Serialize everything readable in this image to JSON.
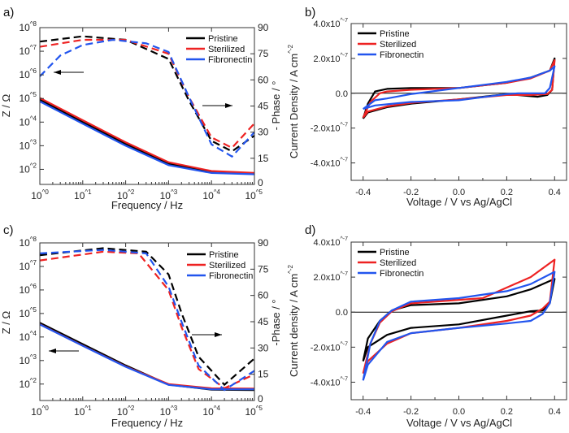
{
  "chart_data": [
    {
      "panel": "a)",
      "type": "line",
      "xlabel": "Frequency / Hz",
      "ylabel": "Z / Ω",
      "y2label": "- Phase / °",
      "xscale": "log",
      "yscale": "log",
      "xlim": [
        1,
        100000
      ],
      "ylim": [
        23,
        100000000
      ],
      "y2lim": [
        0,
        90
      ],
      "xticks": [
        1,
        10,
        100,
        1000,
        10000,
        100000
      ],
      "xticklabels": [
        "10^0",
        "10^1",
        "10^2",
        "10^3",
        "10^4",
        "10^5"
      ],
      "yticks": [
        100,
        1000,
        10000,
        100000,
        1000000,
        10000000,
        100000000
      ],
      "yticklabels": [
        "10^2",
        "10^3",
        "10^4",
        "10^5",
        "10^6",
        "10^7",
        "10^8"
      ],
      "y2ticks": [
        0,
        15,
        30,
        45,
        60,
        75,
        90
      ],
      "y2ticklabels": [
        "0",
        "15",
        "30",
        "45",
        "60",
        "75",
        "90"
      ],
      "legend": "top-right",
      "series": [
        {
          "name": "Pristine",
          "color": "#000000",
          "z": [
            [
              1,
              90000
            ],
            [
              10,
              10000
            ],
            [
              100,
              1200
            ],
            [
              1000,
              170
            ],
            [
              10000,
              80
            ],
            [
              100000,
              68
            ]
          ],
          "phase": [
            [
              1,
              82
            ],
            [
              10,
              85
            ],
            [
              100,
              83
            ],
            [
              1000,
              72
            ],
            [
              3000,
              48
            ],
            [
              10000,
              25
            ],
            [
              30000,
              19
            ],
            [
              100000,
              28
            ]
          ]
        },
        {
          "name": "Sterilized",
          "color": "#ee2222",
          "z": [
            [
              1,
              105000
            ],
            [
              10,
              12000
            ],
            [
              100,
              1400
            ],
            [
              1000,
              200
            ],
            [
              10000,
              85
            ],
            [
              100000,
              70
            ]
          ],
          "phase": [
            [
              1,
              79
            ],
            [
              10,
              83
            ],
            [
              100,
              83
            ],
            [
              1000,
              75
            ],
            [
              3000,
              50
            ],
            [
              10000,
              27
            ],
            [
              30000,
              21
            ],
            [
              100000,
              35
            ]
          ]
        },
        {
          "name": "Fibronectin",
          "color": "#2255ee",
          "z": [
            [
              1,
              75000
            ],
            [
              10,
              8500
            ],
            [
              100,
              1000
            ],
            [
              1000,
              150
            ],
            [
              10000,
              70
            ],
            [
              100000,
              62
            ]
          ],
          "phase": [
            [
              1,
              62
            ],
            [
              3,
              74
            ],
            [
              10,
              80
            ],
            [
              50,
              83
            ],
            [
              300,
              81
            ],
            [
              1000,
              76
            ],
            [
              3000,
              50
            ],
            [
              10000,
              23
            ],
            [
              30000,
              16
            ],
            [
              100000,
              30
            ]
          ]
        }
      ]
    },
    {
      "panel": "b)",
      "type": "line",
      "xlabel": "Voltage / V vs Ag/AgCl",
      "ylabel": "Current Density / A cm^-2",
      "xlim": [
        -0.45,
        0.45
      ],
      "ylim": [
        -5e-07,
        4e-07
      ],
      "xticks": [
        -0.4,
        -0.2,
        0,
        0.2,
        0.4
      ],
      "xticklabels": [
        "-0.4",
        "-0.2",
        "0.0",
        "0.2",
        "0.4"
      ],
      "yticks": [
        -4e-07,
        -2e-07,
        0,
        2e-07,
        4e-07
      ],
      "yticklabels": [
        "-4.0x10^-7",
        "-2.0x10^-7",
        "0.0",
        "2.0x10^-7",
        "4.0x10^-7"
      ],
      "legend": "top-left",
      "series": [
        {
          "name": "Pristine",
          "color": "#000000",
          "points": [
            [
              -0.4,
              -1.45e-07
            ],
            [
              -0.38,
              -6e-08
            ],
            [
              -0.35,
              1e-08
            ],
            [
              -0.3,
              2.5e-08
            ],
            [
              -0.2,
              3e-08
            ],
            [
              0,
              3e-08
            ],
            [
              0.2,
              6e-08
            ],
            [
              0.3,
              9e-08
            ],
            [
              0.38,
              1.3e-07
            ],
            [
              0.4,
              2e-07
            ],
            [
              0.39,
              2e-08
            ],
            [
              0.37,
              -1e-08
            ],
            [
              0.33,
              -2e-08
            ],
            [
              0.2,
              -5e-09
            ],
            [
              0,
              -3.5e-08
            ],
            [
              -0.2,
              -6e-08
            ],
            [
              -0.3,
              -8e-08
            ],
            [
              -0.38,
              -1.1e-07
            ],
            [
              -0.4,
              -1.45e-07
            ]
          ]
        },
        {
          "name": "Sterilized",
          "color": "#ee2222",
          "points": [
            [
              -0.4,
              -1.4e-07
            ],
            [
              -0.37,
              -5e-08
            ],
            [
              -0.33,
              0.0
            ],
            [
              -0.3,
              1e-08
            ],
            [
              -0.2,
              2e-08
            ],
            [
              0,
              3e-08
            ],
            [
              0.2,
              6e-08
            ],
            [
              0.3,
              8.5e-08
            ],
            [
              0.38,
              1.3e-07
            ],
            [
              0.4,
              1.9e-07
            ],
            [
              0.39,
              2e-08
            ],
            [
              0.37,
              -5e-09
            ],
            [
              0.3,
              -1e-08
            ],
            [
              0.2,
              -1e-08
            ],
            [
              0,
              -3.5e-08
            ],
            [
              -0.2,
              -5.5e-08
            ],
            [
              -0.3,
              -7.5e-08
            ],
            [
              -0.38,
              -1.05e-07
            ],
            [
              -0.4,
              -1.4e-07
            ]
          ]
        },
        {
          "name": "Fibronectin",
          "color": "#2255ee",
          "points": [
            [
              -0.4,
              -9e-08
            ],
            [
              -0.35,
              -4e-08
            ],
            [
              -0.3,
              -3e-08
            ],
            [
              -0.2,
              -5e-09
            ],
            [
              0,
              3e-08
            ],
            [
              0.2,
              6.5e-08
            ],
            [
              0.3,
              9e-08
            ],
            [
              0.38,
              1.3e-07
            ],
            [
              0.4,
              1.55e-07
            ],
            [
              0.38,
              3e-08
            ],
            [
              0.36,
              0.0
            ],
            [
              0.25,
              0.0
            ],
            [
              0.2,
              -5e-09
            ],
            [
              0,
              -4e-08
            ],
            [
              -0.2,
              -5e-08
            ],
            [
              -0.35,
              -7e-08
            ],
            [
              -0.4,
              -9e-08
            ]
          ]
        }
      ]
    },
    {
      "panel": "c)",
      "type": "line",
      "xlabel": "Frequency / Hz",
      "ylabel": "Z / Ω",
      "y2label": "-Phase / °",
      "xscale": "log",
      "yscale": "log",
      "xlim": [
        1,
        100000
      ],
      "ylim": [
        20,
        100000000
      ],
      "y2lim": [
        0,
        90
      ],
      "xticks": [
        1,
        10,
        100,
        1000,
        10000,
        100000
      ],
      "xticklabels": [
        "10^0",
        "10^1",
        "10^2",
        "10^3",
        "10^4",
        "10^5"
      ],
      "yticks": [
        100,
        1000,
        10000,
        100000,
        1000000,
        10000000,
        100000000
      ],
      "yticklabels": [
        "10^2",
        "10^3",
        "10^4",
        "10^5",
        "10^6",
        "10^7",
        "10^8"
      ],
      "y2ticks": [
        0,
        15,
        30,
        45,
        60,
        75,
        90
      ],
      "y2ticklabels": [
        "0",
        "15",
        "30",
        "45",
        "60",
        "75",
        "90"
      ],
      "legend": "top-right",
      "series": [
        {
          "name": "Pristine",
          "color": "#000000",
          "z": [
            [
              1,
              40000
            ],
            [
              10,
              5000
            ],
            [
              100,
              620
            ],
            [
              1000,
              95
            ],
            [
              10000,
              58
            ],
            [
              100000,
              56
            ]
          ],
          "phase": [
            [
              1,
              83
            ],
            [
              30,
              87
            ],
            [
              300,
              85
            ],
            [
              1000,
              72
            ],
            [
              2000,
              50
            ],
            [
              5000,
              25
            ],
            [
              20000,
              9
            ],
            [
              100000,
              24
            ]
          ]
        },
        {
          "name": "Sterilized",
          "color": "#ee2222",
          "z": [
            [
              1,
              35000
            ],
            [
              10,
              4300
            ],
            [
              100,
              560
            ],
            [
              1000,
              100
            ],
            [
              10000,
              66
            ],
            [
              100000,
              64
            ]
          ],
          "phase": [
            [
              1,
              80
            ],
            [
              30,
              85
            ],
            [
              200,
              84
            ],
            [
              1000,
              63
            ],
            [
              2000,
              42
            ],
            [
              5000,
              18
            ],
            [
              20000,
              7
            ],
            [
              100000,
              15
            ]
          ]
        },
        {
          "name": "Fibronectin",
          "color": "#2255ee",
          "z": [
            [
              1,
              34000
            ],
            [
              10,
              4200
            ],
            [
              100,
              540
            ],
            [
              1000,
              92
            ],
            [
              10000,
              60
            ],
            [
              100000,
              60
            ]
          ],
          "phase": [
            [
              1,
              84
            ],
            [
              30,
              86
            ],
            [
              300,
              84
            ],
            [
              1000,
              65
            ],
            [
              2000,
              45
            ],
            [
              5000,
              20
            ],
            [
              20000,
              6
            ],
            [
              100000,
              17
            ]
          ]
        }
      ]
    },
    {
      "panel": "d)",
      "type": "line",
      "xlabel": "Voltage / V vs Ag/AgCl",
      "ylabel": "Current density / A cm^-2",
      "xlim": [
        -0.45,
        0.45
      ],
      "ylim": [
        -5e-07,
        4e-07
      ],
      "xticks": [
        -0.4,
        -0.2,
        0,
        0.2,
        0.4
      ],
      "xticklabels": [
        "-0.4",
        "-0.2",
        "0.0",
        "0.2",
        "0.4"
      ],
      "yticks": [
        -4e-07,
        -2e-07,
        0,
        2e-07,
        4e-07
      ],
      "yticklabels": [
        "-4.0x10^-7",
        "-2.0x10^-7",
        "0.0",
        "2.0x10^-7",
        "4.0x10^-7"
      ],
      "legend": "top-left",
      "series": [
        {
          "name": "Pristine",
          "color": "#000000",
          "points": [
            [
              -0.4,
              -2.8e-07
            ],
            [
              -0.38,
              -1.5e-07
            ],
            [
              -0.33,
              -5e-08
            ],
            [
              -0.28,
              1e-08
            ],
            [
              -0.2,
              4e-08
            ],
            [
              0,
              5e-08
            ],
            [
              0.2,
              9e-08
            ],
            [
              0.3,
              1.3e-07
            ],
            [
              0.4,
              1.9e-07
            ],
            [
              0.38,
              5e-08
            ],
            [
              0.35,
              1e-08
            ],
            [
              0.3,
              5e-09
            ],
            [
              0.2,
              -2e-08
            ],
            [
              0,
              -7e-08
            ],
            [
              -0.2,
              -9e-08
            ],
            [
              -0.3,
              -1.3e-07
            ],
            [
              -0.38,
              -2e-07
            ],
            [
              -0.4,
              -2.8e-07
            ]
          ]
        },
        {
          "name": "Sterilized",
          "color": "#ee2222",
          "points": [
            [
              -0.4,
              -3.5e-07
            ],
            [
              -0.37,
              -1.8e-07
            ],
            [
              -0.33,
              -6e-08
            ],
            [
              -0.28,
              5e-09
            ],
            [
              -0.2,
              5e-08
            ],
            [
              0,
              7e-08
            ],
            [
              0.1,
              8e-08
            ],
            [
              0.2,
              1.4e-07
            ],
            [
              0.3,
              2e-07
            ],
            [
              0.4,
              3e-07
            ],
            [
              0.38,
              6e-08
            ],
            [
              0.35,
              2e-08
            ],
            [
              0.3,
              -2e-08
            ],
            [
              0.2,
              -5e-08
            ],
            [
              0,
              -9e-08
            ],
            [
              -0.2,
              -1.2e-07
            ],
            [
              -0.3,
              -1.8e-07
            ],
            [
              -0.38,
              -2.8e-07
            ],
            [
              -0.4,
              -3.5e-07
            ]
          ]
        },
        {
          "name": "Fibronectin",
          "color": "#2255ee",
          "points": [
            [
              -0.4,
              -3.9e-07
            ],
            [
              -0.37,
              -1.8e-07
            ],
            [
              -0.33,
              -5e-08
            ],
            [
              -0.28,
              1e-08
            ],
            [
              -0.2,
              6e-08
            ],
            [
              0,
              8e-08
            ],
            [
              0.2,
              1.2e-07
            ],
            [
              0.3,
              1.6e-07
            ],
            [
              0.4,
              2.3e-07
            ],
            [
              0.38,
              5e-08
            ],
            [
              0.35,
              -1e-08
            ],
            [
              0.3,
              -5e-08
            ],
            [
              0.2,
              -6.5e-08
            ],
            [
              0,
              -9e-08
            ],
            [
              -0.2,
              -1.2e-07
            ],
            [
              -0.3,
              -1.7e-07
            ],
            [
              -0.38,
              -3e-07
            ],
            [
              -0.4,
              -3.9e-07
            ]
          ]
        }
      ]
    }
  ]
}
